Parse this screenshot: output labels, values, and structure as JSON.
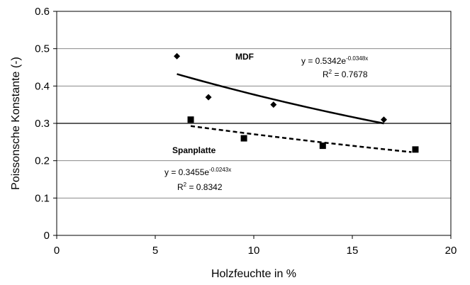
{
  "chart_data": {
    "type": "scatter",
    "title": "",
    "xlabel": "Holzfeuchte in %",
    "ylabel": "Poissonsche Konstante (-)",
    "xlim": [
      0,
      20
    ],
    "ylim": [
      0,
      0.6
    ],
    "x_ticks": [
      "0",
      "5",
      "10",
      "15",
      "20"
    ],
    "y_ticks": [
      "0",
      "0.1",
      "0.2",
      "0.3",
      "0.4",
      "0.5",
      "0.6"
    ],
    "grid": "horizontal",
    "series": [
      {
        "name": "MDF",
        "marker": "diamond",
        "x": [
          6.1,
          7.7,
          11.0,
          16.6
        ],
        "y": [
          0.48,
          0.37,
          0.35,
          0.31
        ],
        "trendline": {
          "type": "exponential",
          "a": 0.5342,
          "b": -0.0348,
          "x_range": [
            6.1,
            16.6
          ],
          "style": "solid",
          "equation_prefix": "y = 0.5342e",
          "equation_exponent": "-0.0348x",
          "r2_prefix": "R",
          "r2_exponent": "2",
          "r2_suffix": " = 0.7678"
        }
      },
      {
        "name": "Spanplatte",
        "marker": "square",
        "x": [
          6.8,
          9.5,
          13.5,
          18.2
        ],
        "y": [
          0.31,
          0.26,
          0.24,
          0.23
        ],
        "trendline": {
          "type": "exponential",
          "a": 0.3455,
          "b": -0.0243,
          "x_range": [
            6.8,
            18.0
          ],
          "style": "dashed",
          "equation_prefix": "y = 0.3455e",
          "equation_exponent": "-0.0243x",
          "r2_prefix": "R",
          "r2_exponent": "2",
          "r2_suffix": " = 0.8342"
        }
      }
    ]
  }
}
